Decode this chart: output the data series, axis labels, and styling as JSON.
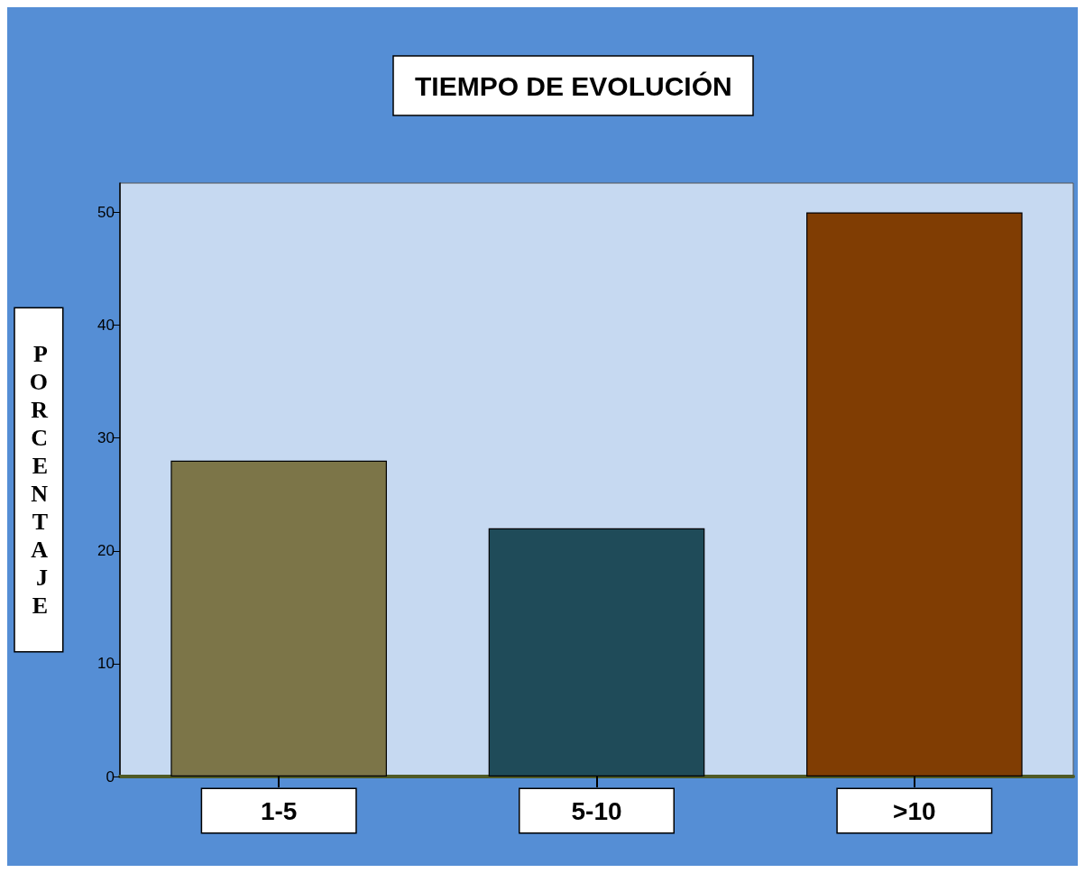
{
  "chart_data": {
    "type": "bar",
    "title": "TIEMPO DE EVOLUCIÓN",
    "ylabel": "PORCENTAJE",
    "categories": [
      "1-5",
      "5-10",
      ">10"
    ],
    "values": [
      28,
      22,
      50
    ],
    "colors": [
      "#7c7548",
      "#1f4b59",
      "#803d03"
    ],
    "ylim": [
      0,
      52.6
    ],
    "yticks": [
      0,
      10,
      20,
      30,
      40,
      50
    ],
    "grid": false
  }
}
